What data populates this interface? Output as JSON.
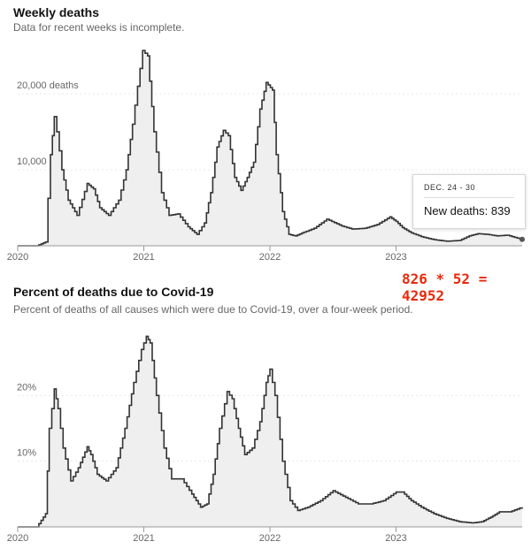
{
  "chart_data": [
    {
      "type": "area",
      "title": "Weekly deaths",
      "subtitle": "Data for recent weeks is incomplete.",
      "xlabel": "",
      "ylabel": "",
      "x_tick_labels": [
        "2020",
        "2021",
        "2022",
        "2023"
      ],
      "y_tick_labels": [
        "10,000",
        "20,000 deaths"
      ],
      "y_ticks": [
        10000,
        20000
      ],
      "ylim": [
        0,
        27000
      ],
      "xlim": [
        2020.0,
        2024.0
      ],
      "grid": false,
      "series": [
        {
          "x": [
            2020.0,
            2020.15,
            2020.22,
            2020.26,
            2020.29,
            2020.31,
            2020.35,
            2020.4,
            2020.47,
            2020.55,
            2020.6,
            2020.65,
            2020.72,
            2020.8,
            2020.86,
            2020.91,
            2020.95,
            2020.99,
            2021.03,
            2021.08,
            2021.14,
            2021.2,
            2021.27,
            2021.35,
            2021.42,
            2021.48,
            2021.53,
            2021.58,
            2021.63,
            2021.67,
            2021.72,
            2021.77,
            2021.82,
            2021.87,
            2021.92,
            2021.97,
            2022.02,
            2022.05,
            2022.1,
            2022.15,
            2022.2,
            2022.27,
            2022.35,
            2022.45,
            2022.57,
            2022.65,
            2022.75,
            2022.85,
            2022.95,
            2023.0,
            2023.05,
            2023.12,
            2023.2,
            2023.3,
            2023.4,
            2023.5,
            2023.58,
            2023.65,
            2023.72,
            2023.8,
            2023.88,
            2023.94,
            2024.0
          ],
          "values": [
            0,
            0,
            500,
            12000,
            17000,
            15000,
            10000,
            6000,
            4000,
            8200,
            7500,
            5000,
            4000,
            6000,
            10000,
            16000,
            21000,
            25700,
            25000,
            15000,
            7000,
            4000,
            4200,
            2500,
            1500,
            3000,
            7000,
            13000,
            15200,
            14500,
            9000,
            7300,
            9000,
            11000,
            18000,
            21500,
            20500,
            12000,
            4500,
            1500,
            1300,
            1800,
            2300,
            3500,
            2600,
            2200,
            2300,
            2800,
            3800,
            3200,
            2400,
            1700,
            1200,
            800,
            600,
            700,
            1300,
            1600,
            1500,
            1300,
            1400,
            1100,
            839
          ]
        }
      ],
      "tooltip": {
        "date": "DEC. 24 - 30",
        "label": "New deaths: 839"
      }
    },
    {
      "type": "area",
      "title": "Percent of deaths due to Covid-19",
      "subtitle": "Percent of deaths of all causes which were due to Covid-19, over a four-week period.",
      "xlabel": "",
      "ylabel": "",
      "x_tick_labels": [
        "2020",
        "2021",
        "2022",
        "2023"
      ],
      "y_tick_labels": [
        "10%",
        "20%"
      ],
      "y_ticks": [
        10,
        20
      ],
      "ylim": [
        0,
        30
      ],
      "xlim": [
        2020.0,
        2024.0
      ],
      "grid": false,
      "series": [
        {
          "x": [
            2020.0,
            2020.15,
            2020.22,
            2020.25,
            2020.29,
            2020.32,
            2020.36,
            2020.42,
            2020.48,
            2020.55,
            2020.58,
            2020.63,
            2020.7,
            2020.78,
            2020.85,
            2020.92,
            2020.98,
            2021.02,
            2021.05,
            2021.1,
            2021.16,
            2021.22,
            2021.3,
            2021.38,
            2021.45,
            2021.5,
            2021.55,
            2021.6,
            2021.66,
            2021.7,
            2021.75,
            2021.8,
            2021.86,
            2021.92,
            2021.97,
            2022.0,
            2022.04,
            2022.1,
            2022.16,
            2022.22,
            2022.3,
            2022.4,
            2022.5,
            2022.6,
            2022.7,
            2022.8,
            2022.9,
            2023.0,
            2023.05,
            2023.12,
            2023.2,
            2023.3,
            2023.4,
            2023.5,
            2023.6,
            2023.68,
            2023.75,
            2023.82,
            2023.9,
            2024.0
          ],
          "values": [
            0,
            0,
            2,
            15,
            21,
            18,
            12,
            7,
            9,
            12.2,
            11,
            8,
            7,
            9,
            15,
            22,
            27,
            29,
            28,
            20,
            12,
            7.3,
            7.3,
            5,
            3,
            3.5,
            8,
            15,
            20.6,
            19.5,
            15,
            11,
            12,
            16,
            22,
            24,
            20,
            10,
            4,
            2.5,
            3,
            4,
            5.5,
            4.5,
            3.5,
            3.5,
            4,
            5.3,
            5.3,
            4,
            3,
            2,
            1.3,
            0.8,
            0.6,
            0.8,
            1.5,
            2.3,
            2.3,
            3
          ]
        }
      ]
    }
  ],
  "annotation": "826 * 52 = 42952"
}
